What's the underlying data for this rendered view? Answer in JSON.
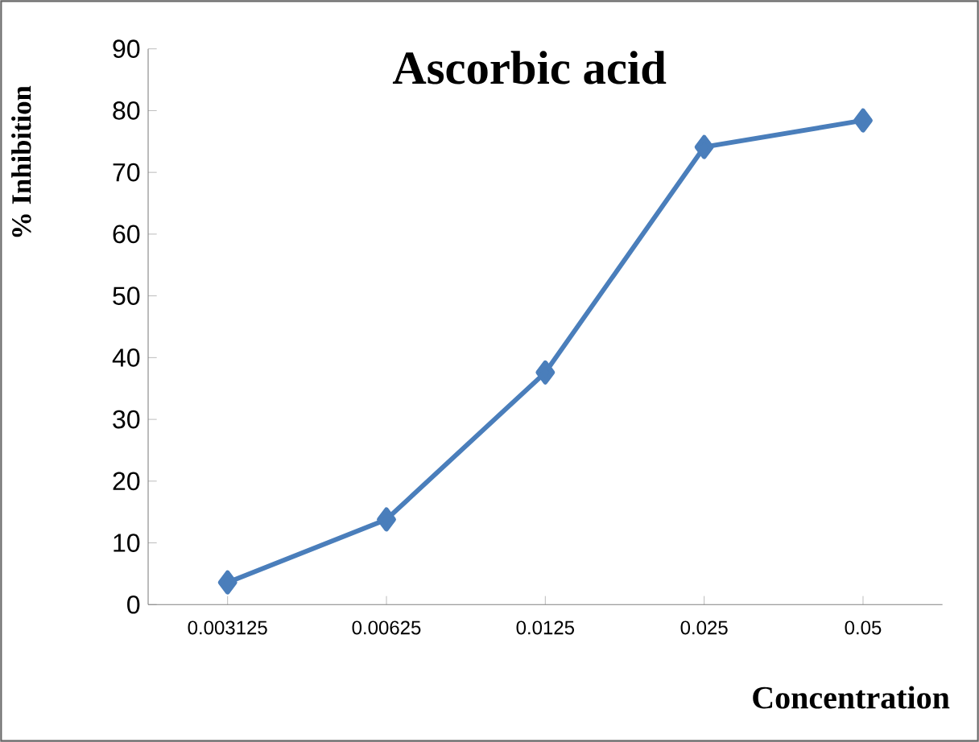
{
  "chart_data": {
    "type": "line",
    "title": "Ascorbic acid",
    "xlabel": "Concentration",
    "ylabel": "% Inhibition",
    "categories": [
      "0.003125",
      "0.00625",
      "0.0125",
      "0.025",
      "0.05"
    ],
    "series": [
      {
        "color": "#4a7ebb",
        "values": [
          3.6,
          13.8,
          37.6,
          74.1,
          78.4
        ]
      }
    ],
    "ylim": [
      0,
      90
    ],
    "yticks": [
      0,
      10,
      20,
      30,
      40,
      50,
      60,
      70,
      80,
      90
    ],
    "grid": false,
    "marker": "diamond",
    "line_style": "solid"
  }
}
